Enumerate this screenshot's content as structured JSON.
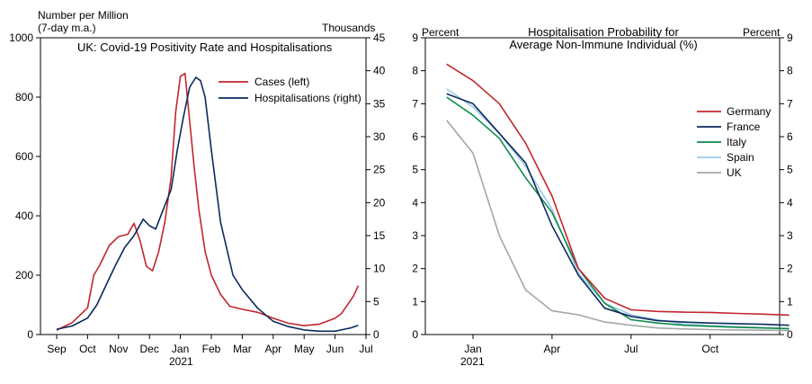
{
  "chart_data": [
    {
      "type": "line",
      "title": "UK: Covid-19 Positivity Rate and Hospitalisations",
      "ylabel_left": "Number per Million",
      "ylabel_left_sub": "(7-day m.a.)",
      "ylabel_right": "Thousands",
      "ylim_left": [
        0,
        1000
      ],
      "ylim_right": [
        0,
        45
      ],
      "yticks_left": [
        "0",
        "200",
        "400",
        "600",
        "800",
        "1000"
      ],
      "yticks_right": [
        "0",
        "5",
        "10",
        "15",
        "20",
        "25",
        "30",
        "35",
        "40",
        "45"
      ],
      "x_tick_labels": [
        "Sep",
        "Oct",
        "Nov",
        "Dec",
        "Jan",
        "Feb",
        "Mar",
        "Apr",
        "May",
        "Jun",
        "Jul"
      ],
      "x_year_label": "2021",
      "legend": [
        "Cases (left)",
        "Hospitalisations (right)"
      ],
      "colors": {
        "cases": "#c1272d",
        "hospitalisations": "#0b2a5c"
      },
      "series": [
        {
          "name": "Cases (left)",
          "axis": "left",
          "x": [
            0,
            0.5,
            1,
            1.2,
            1.4,
            1.7,
            2,
            2.3,
            2.5,
            2.7,
            2.9,
            3.1,
            3.3,
            3.5,
            3.7,
            3.85,
            4,
            4.15,
            4.3,
            4.45,
            4.6,
            4.8,
            5,
            5.3,
            5.6,
            6,
            6.5,
            7,
            7.5,
            8,
            8.5,
            9,
            9.2,
            9.4,
            9.6,
            9.75
          ],
          "values": [
            15,
            40,
            90,
            200,
            235,
            300,
            330,
            338,
            375,
            315,
            230,
            215,
            280,
            380,
            530,
            750,
            870,
            880,
            720,
            560,
            420,
            280,
            200,
            135,
            95,
            85,
            75,
            55,
            38,
            30,
            35,
            55,
            70,
            100,
            130,
            165
          ]
        },
        {
          "name": "Hospitalisations (right)",
          "axis": "right",
          "x": [
            0,
            0.5,
            1,
            1.3,
            1.6,
            1.9,
            2.2,
            2.5,
            2.8,
            3.0,
            3.2,
            3.45,
            3.7,
            3.9,
            4.1,
            4.3,
            4.5,
            4.65,
            4.8,
            5,
            5.3,
            5.7,
            6,
            6.5,
            7,
            7.5,
            8,
            8.5,
            9,
            9.3,
            9.5,
            9.75
          ],
          "values": [
            0.8,
            1.3,
            2.5,
            4.5,
            7.5,
            10.5,
            13.2,
            15,
            17.5,
            16.5,
            16,
            19,
            22,
            28,
            33,
            37.5,
            39,
            38.5,
            36,
            28,
            17,
            9,
            6.8,
            4,
            2,
            1.2,
            0.7,
            0.5,
            0.5,
            0.8,
            1,
            1.4
          ]
        }
      ]
    },
    {
      "type": "line",
      "title": "Hospitalisation Probability for Average Non-Immune Individual (%)",
      "title_lines": [
        "Hospitalisation Probability for",
        "Average Non-Immune Individual (%)"
      ],
      "ylabel_left": "Percent",
      "ylabel_right": "Percent",
      "ylim": [
        0,
        9
      ],
      "yticks": [
        "0",
        "1",
        "2",
        "3",
        "4",
        "5",
        "6",
        "7",
        "8",
        "9"
      ],
      "x_tick_labels": [
        "Jan",
        "Apr",
        "Jul",
        "Oct"
      ],
      "x_year_label": "2021",
      "legend": [
        "Germany",
        "France",
        "Italy",
        "Spain",
        "UK"
      ],
      "colors": {
        "Germany": "#c1272d",
        "France": "#0b2a5c",
        "Italy": "#0e8a4a",
        "Spain": "#9ccbeb",
        "UK": "#a6a6a6"
      },
      "x": [
        -1.0,
        0,
        1,
        2,
        3,
        4,
        5,
        6,
        7,
        8,
        9,
        10,
        11,
        12
      ],
      "series": [
        {
          "name": "Germany",
          "values": [
            8.2,
            7.7,
            7.0,
            5.8,
            4.2,
            2.0,
            1.1,
            0.75,
            0.7,
            0.68,
            0.67,
            0.64,
            0.62,
            0.59
          ]
        },
        {
          "name": "France",
          "values": [
            7.3,
            7.0,
            6.1,
            5.2,
            3.3,
            1.8,
            0.8,
            0.55,
            0.42,
            0.38,
            0.35,
            0.33,
            0.31,
            0.28
          ]
        },
        {
          "name": "Italy",
          "values": [
            7.2,
            6.65,
            5.95,
            4.75,
            3.7,
            2.0,
            0.95,
            0.45,
            0.35,
            0.28,
            0.25,
            0.22,
            0.2,
            0.18
          ]
        },
        {
          "name": "Spain",
          "values": [
            7.45,
            6.9,
            6.1,
            5.1,
            3.8,
            1.85,
            0.95,
            0.6,
            0.45,
            0.32,
            0.27,
            0.24,
            0.21,
            0.18
          ]
        },
        {
          "name": "UK",
          "values": [
            6.5,
            5.5,
            3.0,
            1.35,
            0.72,
            0.6,
            0.38,
            0.28,
            0.2,
            0.17,
            0.15,
            0.14,
            0.13,
            0.12
          ]
        }
      ]
    }
  ]
}
